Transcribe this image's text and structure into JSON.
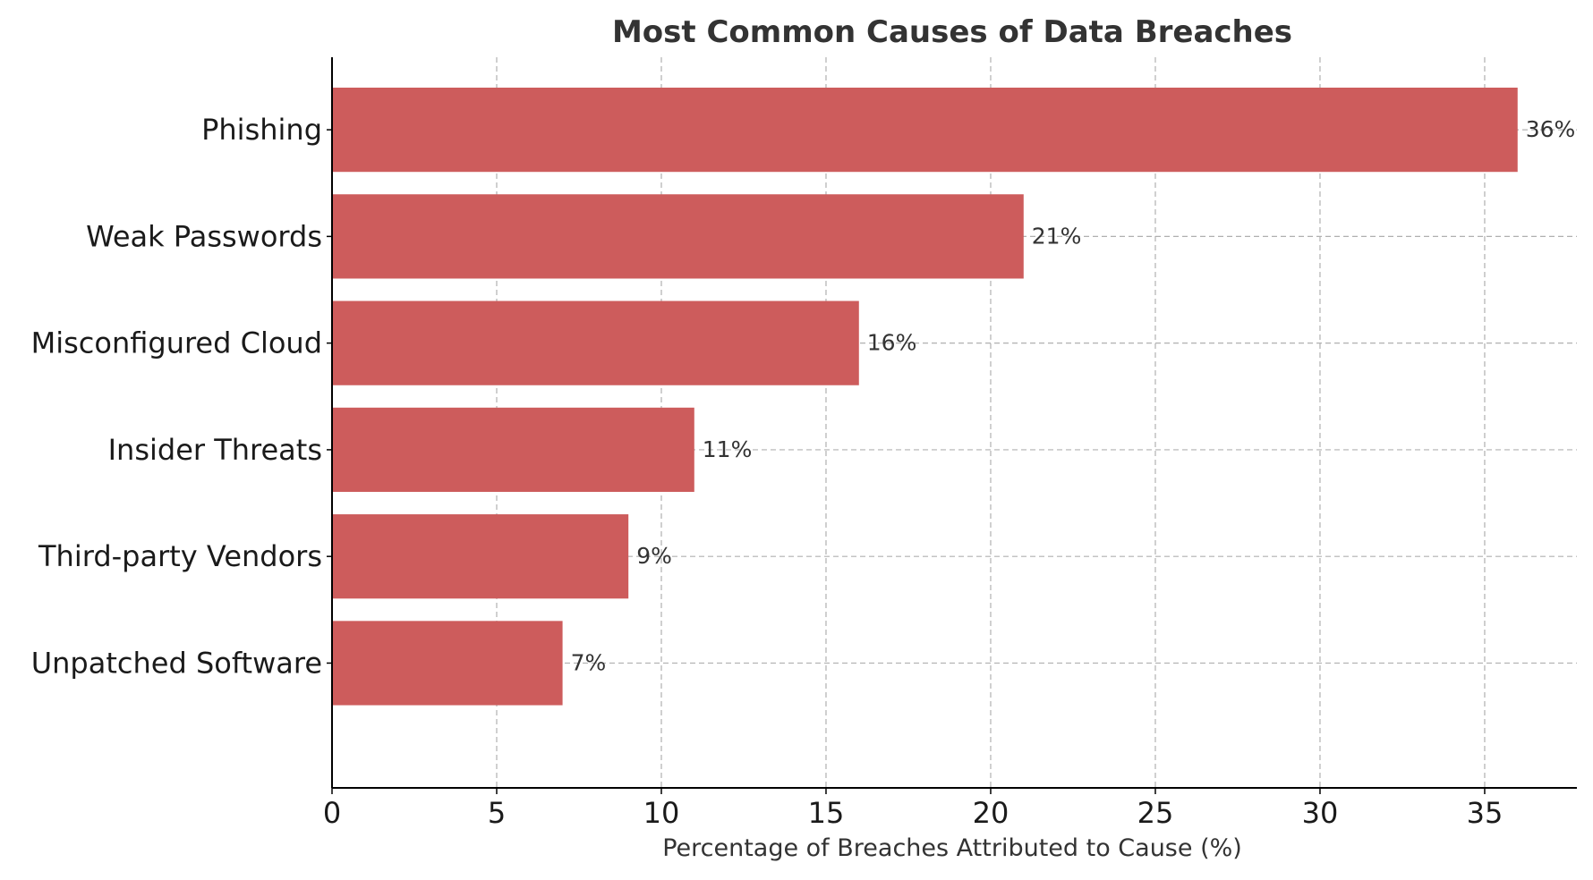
{
  "chart_data": {
    "type": "bar",
    "orientation": "horizontal",
    "title": "Most Common Causes of Data Breaches",
    "xlabel": "Percentage of Breaches Attributed to Cause (%)",
    "ylabel": "",
    "categories": [
      "Phishing",
      "Weak Passwords",
      "Misconfigured Cloud",
      "Insider Threats",
      "Third-party Vendors",
      "Unpatched Software"
    ],
    "values": [
      36,
      21,
      16,
      11,
      9,
      7
    ],
    "data_labels": [
      "36%",
      "21%",
      "16%",
      "11%",
      "9%",
      "7%"
    ],
    "x_ticks": [
      0,
      5,
      10,
      15,
      20,
      25,
      30,
      35
    ],
    "xlim": [
      0,
      37.8
    ],
    "grid": true,
    "grid_style": "dashed",
    "bar_color": "#cd5c5c",
    "text_color": "#333333"
  }
}
